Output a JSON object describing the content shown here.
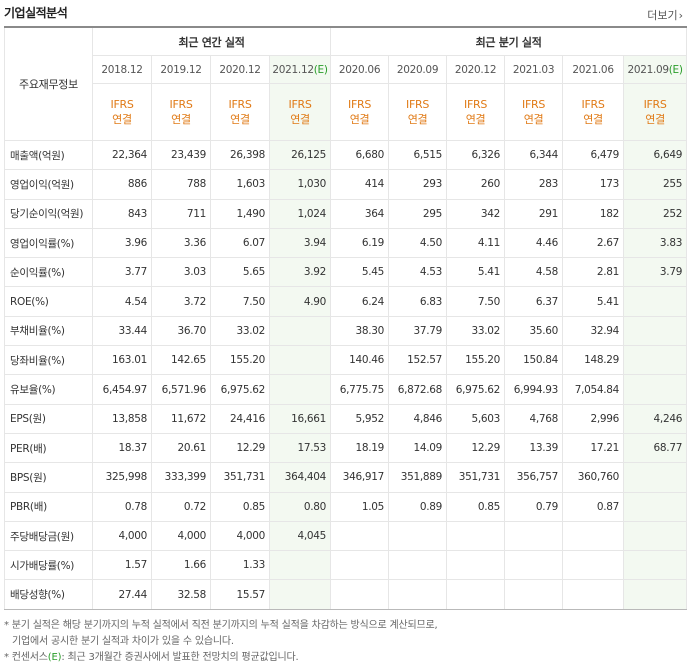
{
  "header": {
    "title": "기업실적분석",
    "more_label": "더보기"
  },
  "table": {
    "corner_label": "주요재무정보",
    "annual_group": "최근 연간 실적",
    "quarter_group": "최근 분기 실적",
    "annual_periods": [
      "2018.12",
      "2019.12",
      "2020.12",
      "2021.12"
    ],
    "annual_est_suffix": "(E)",
    "quarter_periods": [
      "2020.06",
      "2020.09",
      "2020.12",
      "2021.03",
      "2021.06",
      "2021.09"
    ],
    "quarter_est_suffix": "(E)",
    "standard_line1": "IFRS",
    "standard_line2": "연결",
    "rows": [
      {
        "label": "매출액(억원)",
        "values": [
          "22,364",
          "23,439",
          "26,398",
          "26,125",
          "6,680",
          "6,515",
          "6,326",
          "6,344",
          "6,479",
          "6,649"
        ]
      },
      {
        "label": "영업이익(억원)",
        "values": [
          "886",
          "788",
          "1,603",
          "1,030",
          "414",
          "293",
          "260",
          "283",
          "173",
          "255"
        ]
      },
      {
        "label": "당기순이익(억원)",
        "values": [
          "843",
          "711",
          "1,490",
          "1,024",
          "364",
          "295",
          "342",
          "291",
          "182",
          "252"
        ]
      },
      {
        "label": "영업이익률(%)",
        "values": [
          "3.96",
          "3.36",
          "6.07",
          "3.94",
          "6.19",
          "4.50",
          "4.11",
          "4.46",
          "2.67",
          "3.83"
        ]
      },
      {
        "label": "순이익률(%)",
        "values": [
          "3.77",
          "3.03",
          "5.65",
          "3.92",
          "5.45",
          "4.53",
          "5.41",
          "4.58",
          "2.81",
          "3.79"
        ]
      },
      {
        "label": "ROE(%)",
        "values": [
          "4.54",
          "3.72",
          "7.50",
          "4.90",
          "6.24",
          "6.83",
          "7.50",
          "6.37",
          "5.41",
          ""
        ]
      },
      {
        "label": "부채비율(%)",
        "values": [
          "33.44",
          "36.70",
          "33.02",
          "",
          "38.30",
          "37.79",
          "33.02",
          "35.60",
          "32.94",
          ""
        ]
      },
      {
        "label": "당좌비율(%)",
        "values": [
          "163.01",
          "142.65",
          "155.20",
          "",
          "140.46",
          "152.57",
          "155.20",
          "150.84",
          "148.29",
          ""
        ]
      },
      {
        "label": "유보율(%)",
        "values": [
          "6,454.97",
          "6,571.96",
          "6,975.62",
          "",
          "6,775.75",
          "6,872.68",
          "6,975.62",
          "6,994.93",
          "7,054.84",
          ""
        ]
      },
      {
        "label": "EPS(원)",
        "values": [
          "13,858",
          "11,672",
          "24,416",
          "16,661",
          "5,952",
          "4,846",
          "5,603",
          "4,768",
          "2,996",
          "4,246"
        ]
      },
      {
        "label": "PER(배)",
        "values": [
          "18.37",
          "20.61",
          "12.29",
          "17.53",
          "18.19",
          "14.09",
          "12.29",
          "13.39",
          "17.21",
          "68.77"
        ]
      },
      {
        "label": "BPS(원)",
        "values": [
          "325,998",
          "333,399",
          "351,731",
          "364,404",
          "346,917",
          "351,889",
          "351,731",
          "356,757",
          "360,760",
          ""
        ]
      },
      {
        "label": "PBR(배)",
        "values": [
          "0.78",
          "0.72",
          "0.85",
          "0.80",
          "1.05",
          "0.89",
          "0.85",
          "0.79",
          "0.87",
          ""
        ]
      },
      {
        "label": "주당배당금(원)",
        "values": [
          "4,000",
          "4,000",
          "4,000",
          "4,045",
          "",
          "",
          "",
          "",
          "",
          ""
        ]
      },
      {
        "label": "시가배당률(%)",
        "values": [
          "1.57",
          "1.66",
          "1.33",
          "",
          "",
          "",
          "",
          "",
          "",
          ""
        ]
      },
      {
        "label": "배당성향(%)",
        "values": [
          "27.44",
          "32.58",
          "15.57",
          "",
          "",
          "",
          "",
          "",
          "",
          ""
        ]
      }
    ]
  },
  "notes": {
    "line1": "* 분기 실적은 해당 분기까지의 누적 실적에서 직전 분기까지의 누적 실적을 차감하는 방식으로 계산되므로,",
    "line2": "기업에서 공시한 분기 실적과 차이가 있을 수 있습니다.",
    "line3_prefix": "* 컨센서스",
    "line3_e": "(E)",
    "line3_rest": ": 최근 3개월간 증권사에서 발표한 전망치의 평균값입니다."
  }
}
